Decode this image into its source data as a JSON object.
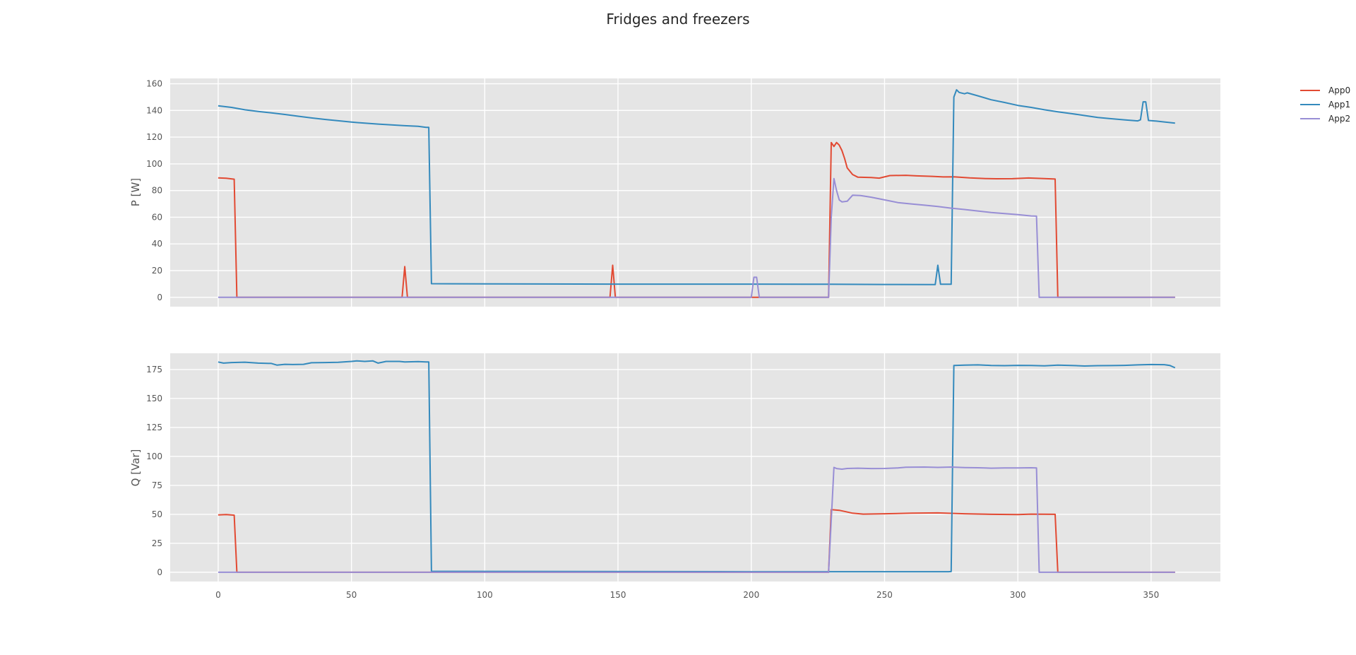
{
  "chart_data": [
    {
      "type": "line",
      "title": "Fridges and freezers",
      "ylabel": "P [W]",
      "xlabel": "",
      "xlim": [
        -18,
        376
      ],
      "ylim": [
        -7,
        164
      ],
      "xticks": [
        0,
        50,
        100,
        150,
        200,
        250,
        300,
        350
      ],
      "yticks": [
        0,
        20,
        40,
        60,
        80,
        100,
        120,
        140,
        160
      ],
      "show_xtick_labels": false,
      "grid": true,
      "series": [
        {
          "name": "App0",
          "color": "#E24A33",
          "points": [
            [
              0,
              89.5
            ],
            [
              3,
              89.2
            ],
            [
              6,
              88.5
            ],
            [
              7,
              0
            ],
            [
              69,
              0
            ],
            [
              70,
              23
            ],
            [
              71,
              0
            ],
            [
              147,
              0
            ],
            [
              148,
              24
            ],
            [
              149,
              0
            ],
            [
              229,
              0
            ],
            [
              230,
              116
            ],
            [
              231,
              113
            ],
            [
              232,
              116
            ],
            [
              233,
              114
            ],
            [
              234,
              110
            ],
            [
              235,
              104
            ],
            [
              236,
              97
            ],
            [
              238,
              92
            ],
            [
              240,
              90
            ],
            [
              245,
              89.7
            ],
            [
              248,
              89.3
            ],
            [
              252,
              91.2
            ],
            [
              258,
              91.4
            ],
            [
              262,
              91
            ],
            [
              268,
              90.6
            ],
            [
              272,
              90.2
            ],
            [
              276,
              90.3
            ],
            [
              282,
              89.5
            ],
            [
              288,
              89
            ],
            [
              292,
              88.8
            ],
            [
              298,
              88.9
            ],
            [
              304,
              89.4
            ],
            [
              310,
              89
            ],
            [
              314,
              88.6
            ],
            [
              315,
              0
            ],
            [
              359,
              0
            ]
          ]
        },
        {
          "name": "App1",
          "color": "#348ABD",
          "points": [
            [
              0,
              143.5
            ],
            [
              5,
              142.3
            ],
            [
              10,
              140.5
            ],
            [
              15,
              139.3
            ],
            [
              20,
              138.2
            ],
            [
              25,
              137
            ],
            [
              30,
              135.7
            ],
            [
              35,
              134.4
            ],
            [
              40,
              133.3
            ],
            [
              45,
              132.3
            ],
            [
              50,
              131.3
            ],
            [
              55,
              130.5
            ],
            [
              60,
              129.8
            ],
            [
              65,
              129.2
            ],
            [
              70,
              128.6
            ],
            [
              75,
              128.1
            ],
            [
              78,
              127.3
            ],
            [
              79,
              127.3
            ],
            [
              80,
              10.2
            ],
            [
              100,
              10.1
            ],
            [
              150,
              9.9
            ],
            [
              200,
              9.9
            ],
            [
              229,
              9.8
            ],
            [
              250,
              9.6
            ],
            [
              269,
              9.5
            ],
            [
              270,
              24
            ],
            [
              271,
              9.8
            ],
            [
              275,
              9.8
            ],
            [
              276,
              150
            ],
            [
              277,
              155.5
            ],
            [
              278,
              153.5
            ],
            [
              280,
              152.5
            ],
            [
              281,
              153.2
            ],
            [
              285,
              151
            ],
            [
              290,
              148
            ],
            [
              295,
              146
            ],
            [
              300,
              143.8
            ],
            [
              305,
              142.3
            ],
            [
              310,
              140.5
            ],
            [
              315,
              139
            ],
            [
              320,
              137.7
            ],
            [
              325,
              136.2
            ],
            [
              330,
              134.8
            ],
            [
              335,
              133.8
            ],
            [
              340,
              133
            ],
            [
              345,
              132.2
            ],
            [
              346,
              133
            ],
            [
              347,
              146.5
            ],
            [
              348,
              146.5
            ],
            [
              349,
              132.5
            ],
            [
              352,
              132
            ],
            [
              359,
              130.5
            ]
          ]
        },
        {
          "name": "App2",
          "color": "#988ED5",
          "points": [
            [
              0,
              0
            ],
            [
              200,
              0
            ],
            [
              201,
              15
            ],
            [
              202,
              15
            ],
            [
              203,
              0
            ],
            [
              229,
              0
            ],
            [
              230,
              60
            ],
            [
              231,
              89
            ],
            [
              232,
              80
            ],
            [
              233,
              73
            ],
            [
              234,
              71.5
            ],
            [
              236,
              72
            ],
            [
              238,
              76.5
            ],
            [
              241,
              76.3
            ],
            [
              245,
              75
            ],
            [
              250,
              73
            ],
            [
              255,
              71
            ],
            [
              260,
              70
            ],
            [
              265,
              69
            ],
            [
              270,
              68
            ],
            [
              275,
              66.8
            ],
            [
              280,
              65.8
            ],
            [
              285,
              64.7
            ],
            [
              290,
              63.5
            ],
            [
              295,
              62.7
            ],
            [
              300,
              62
            ],
            [
              305,
              61
            ],
            [
              307,
              60.8
            ],
            [
              308,
              0
            ],
            [
              359,
              0
            ]
          ]
        }
      ]
    },
    {
      "type": "line",
      "title": "",
      "ylabel": "Q [Var]",
      "xlabel": "",
      "xlim": [
        -18,
        376
      ],
      "ylim": [
        -8,
        189
      ],
      "xticks": [
        0,
        50,
        100,
        150,
        200,
        250,
        300,
        350
      ],
      "yticks": [
        0,
        25,
        50,
        75,
        100,
        125,
        150,
        175
      ],
      "show_xtick_labels": true,
      "grid": true,
      "series": [
        {
          "name": "App0",
          "color": "#E24A33",
          "points": [
            [
              0,
              49.5
            ],
            [
              3,
              49.8
            ],
            [
              6,
              49.3
            ],
            [
              7,
              0
            ],
            [
              229,
              0
            ],
            [
              230,
              54
            ],
            [
              233,
              53.5
            ],
            [
              235,
              52.5
            ],
            [
              238,
              51
            ],
            [
              242,
              50.2
            ],
            [
              250,
              50.5
            ],
            [
              260,
              51
            ],
            [
              270,
              51.2
            ],
            [
              280,
              50.5
            ],
            [
              290,
              50
            ],
            [
              300,
              49.8
            ],
            [
              305,
              50.2
            ],
            [
              314,
              50
            ],
            [
              315,
              0
            ],
            [
              359,
              0
            ]
          ]
        },
        {
          "name": "App1",
          "color": "#348ABD",
          "points": [
            [
              0,
              181.5
            ],
            [
              2,
              180.5
            ],
            [
              5,
              181
            ],
            [
              10,
              181.3
            ],
            [
              15,
              180.5
            ],
            [
              20,
              180.2
            ],
            [
              22,
              178.8
            ],
            [
              25,
              179.5
            ],
            [
              28,
              179.3
            ],
            [
              32,
              179.5
            ],
            [
              35,
              180.8
            ],
            [
              40,
              181
            ],
            [
              45,
              181.2
            ],
            [
              50,
              182
            ],
            [
              52,
              182.5
            ],
            [
              55,
              182
            ],
            [
              58,
              182.5
            ],
            [
              60,
              180.5
            ],
            [
              63,
              182
            ],
            [
              68,
              182
            ],
            [
              70,
              181.5
            ],
            [
              75,
              181.8
            ],
            [
              78,
              181.5
            ],
            [
              79,
              181.5
            ],
            [
              80,
              0.8
            ],
            [
              150,
              0.6
            ],
            [
              200,
              0.5
            ],
            [
              250,
              0.5
            ],
            [
              274,
              0.5
            ],
            [
              275,
              0.6
            ],
            [
              276,
              178.5
            ],
            [
              280,
              178.8
            ],
            [
              285,
              179
            ],
            [
              290,
              178.5
            ],
            [
              295,
              178.3
            ],
            [
              300,
              178.6
            ],
            [
              305,
              178.5
            ],
            [
              310,
              178.2
            ],
            [
              315,
              178.8
            ],
            [
              320,
              178.5
            ],
            [
              325,
              178
            ],
            [
              330,
              178.3
            ],
            [
              335,
              178.4
            ],
            [
              340,
              178.6
            ],
            [
              345,
              179
            ],
            [
              350,
              179.3
            ],
            [
              355,
              179.2
            ],
            [
              357,
              178.5
            ],
            [
              359,
              176.5
            ]
          ]
        },
        {
          "name": "App2",
          "color": "#988ED5",
          "points": [
            [
              0,
              0
            ],
            [
              229,
              0
            ],
            [
              230,
              45
            ],
            [
              231,
              90.5
            ],
            [
              232,
              89.5
            ],
            [
              234,
              89
            ],
            [
              236,
              89.6
            ],
            [
              240,
              89.8
            ],
            [
              245,
              89.5
            ],
            [
              250,
              89.6
            ],
            [
              255,
              90
            ],
            [
              258,
              90.7
            ],
            [
              265,
              90.8
            ],
            [
              270,
              90.5
            ],
            [
              275,
              90.8
            ],
            [
              280,
              90.4
            ],
            [
              285,
              90.2
            ],
            [
              290,
              89.8
            ],
            [
              295,
              90.1
            ],
            [
              300,
              90
            ],
            [
              305,
              90.2
            ],
            [
              307,
              90.1
            ],
            [
              308,
              0
            ],
            [
              359,
              0
            ]
          ]
        }
      ]
    }
  ],
  "legend": {
    "placement": "upper-right-outside",
    "items": [
      {
        "label": "App0",
        "color": "#E24A33"
      },
      {
        "label": "App1",
        "color": "#348ABD"
      },
      {
        "label": "App2",
        "color": "#988ED5"
      }
    ]
  }
}
